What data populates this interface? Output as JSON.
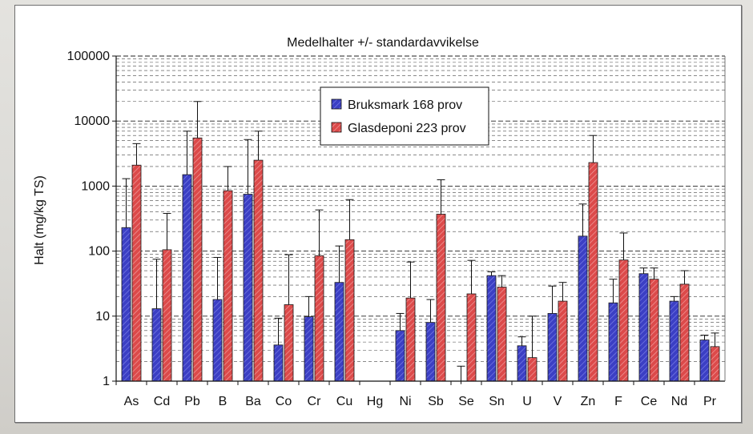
{
  "chart_data": {
    "type": "bar",
    "title": "Medelhalter +/- standardavvikelse",
    "ylabel": "Halt (mg/kg TS)",
    "xlabel": "",
    "yscale": "log",
    "ylim": [
      1,
      100000
    ],
    "ytick_labels": [
      "1",
      "10",
      "100",
      "1000",
      "10000",
      "100000"
    ],
    "grid": "dashed horizontal at minor log steps",
    "legend_placement": "upper-center",
    "categories": [
      "As",
      "Cd",
      "Pb",
      "B",
      "Ba",
      "Co",
      "Cr",
      "Cu",
      "Hg",
      "Ni",
      "Sb",
      "Se",
      "Sn",
      "U",
      "V",
      "Zn",
      "F",
      "Ce",
      "Nd",
      "Pr"
    ],
    "series": [
      {
        "name": "Bruksmark 168 prov",
        "color": "#3b3fc4",
        "values": [
          230,
          13,
          1500,
          18,
          750,
          3.6,
          9.8,
          33,
          null,
          6,
          8,
          0.9,
          42,
          3.5,
          11,
          170,
          16,
          45,
          17,
          4.3
        ],
        "error_plus": [
          1300,
          75,
          7000,
          80,
          5200,
          9.3,
          20,
          120,
          null,
          11,
          18,
          1.7,
          48,
          4.8,
          29,
          530,
          37,
          55,
          20,
          5.1
        ]
      },
      {
        "name": "Glasdeponi 223 prov",
        "color": "#dc4a4a",
        "values": [
          2100,
          105,
          5500,
          850,
          2500,
          15,
          85,
          150,
          null,
          19,
          370,
          22,
          28,
          2.3,
          17,
          2300,
          73,
          37,
          31,
          3.4
        ],
        "error_plus": [
          4500,
          380,
          20000,
          2000,
          7000,
          88,
          430,
          620,
          null,
          68,
          1250,
          72,
          42,
          10,
          33,
          6000,
          190,
          55,
          50,
          5.5
        ]
      }
    ]
  }
}
